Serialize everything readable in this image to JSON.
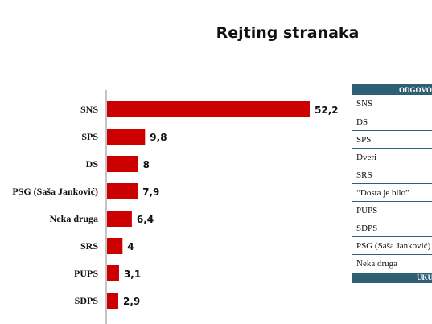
{
  "title": "Rejting stranaka",
  "chart_data": {
    "type": "bar",
    "orientation": "horizontal",
    "categories": [
      "SNS",
      "SPS",
      "DS",
      "PSG (Saša Janković)",
      "Neka druga",
      "SRS",
      "PUPS",
      "SDPS"
    ],
    "values": [
      52.2,
      9.8,
      8,
      7.9,
      6.4,
      4,
      3.1,
      2.9
    ],
    "value_labels": [
      "52,2",
      "9,8",
      "8",
      "7,9",
      "6,4",
      "4",
      "3,1",
      "2,9"
    ],
    "bar_color": "#cc0000",
    "grid": false,
    "legend": "none"
  },
  "table": {
    "header": "ODGOVORI",
    "rows": [
      "SNS",
      "DS",
      "SPS",
      "Dveri",
      "SRS",
      "“Dosta je bilo”",
      "PUPS",
      "SDPS",
      "PSG (Saša Janković)",
      "Neka druga"
    ],
    "footer": "UKUPNO"
  },
  "colors": {
    "bar": "#cc0000",
    "table_header": "#2f5f73",
    "axis": "#888888"
  }
}
